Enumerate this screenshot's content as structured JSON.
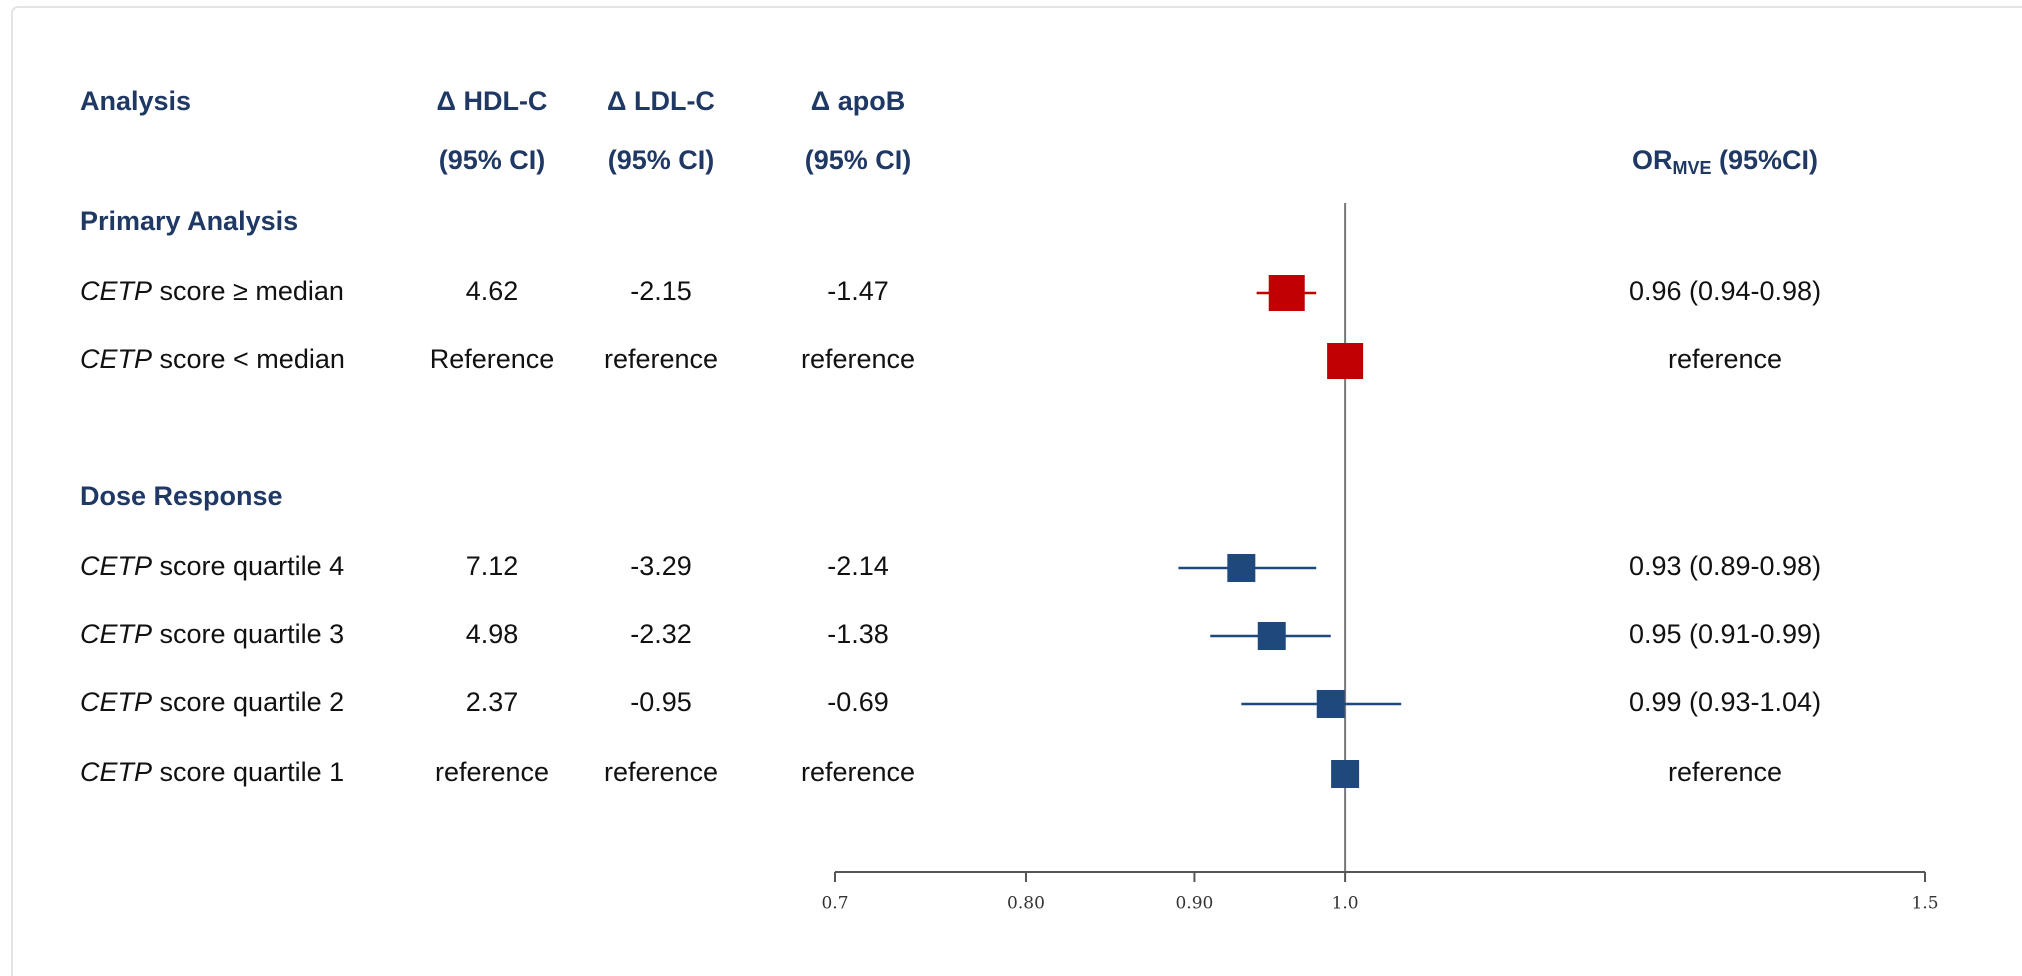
{
  "chart_data": {
    "type": "forest",
    "columns": [
      {
        "title": "Analysis"
      },
      {
        "title": "Δ HDL-C",
        "subtitle": "(95% CI)"
      },
      {
        "title": "Δ LDL-C",
        "subtitle": "(95% CI)"
      },
      {
        "title": "Δ apoB",
        "subtitle": "(95% CI)"
      }
    ],
    "or_header": {
      "main": "OR",
      "sub": "MVE",
      "rest": " (95%CI)"
    },
    "groups": [
      {
        "title": "Primary Analysis",
        "color": "#c00000",
        "rows": [
          {
            "label": "CETP score ≥ median",
            "cells": [
              "4.62",
              "-2.15",
              "-1.47"
            ],
            "or_text": "0.96 (0.94-0.98)",
            "estimate": 0.96,
            "lower": 0.94,
            "upper": 0.98
          },
          {
            "label": "CETP score <  median",
            "cells": [
              "Reference",
              "reference",
              "reference"
            ],
            "or_text": "reference",
            "estimate": 1,
            "lower": null,
            "upper": null
          }
        ]
      },
      {
        "title": "Dose Response",
        "color": "#1f497d",
        "rows": [
          {
            "label": "CETP score quartile 4",
            "cells": [
              "7.12",
              "-3.29",
              "-2.14"
            ],
            "or_text": "0.93 (0.89-0.98)",
            "estimate": 0.93,
            "lower": 0.89,
            "upper": 0.98
          },
          {
            "label": "CETP score quartile 3",
            "cells": [
              "4.98",
              "-2.32",
              "-1.38"
            ],
            "or_text": "0.95 (0.91-0.99)",
            "estimate": 0.95,
            "lower": 0.91,
            "upper": 0.99
          },
          {
            "label": "CETP score quartile 2",
            "cells": [
              "2.37",
              "-0.95",
              "-0.69"
            ],
            "or_text": "0.99 (0.93-1.04)",
            "estimate": 0.99,
            "lower": 0.93,
            "upper": 1.04
          },
          {
            "label": "CETP score quartile 1",
            "cells": [
              "reference",
              "reference",
              "reference"
            ],
            "or_text": "reference",
            "estimate": 1,
            "lower": null,
            "upper": null
          }
        ]
      }
    ],
    "xlim": [
      0.7,
      1.5
    ],
    "xticks": [
      0.7,
      {
        "value": 0.8,
        "label": "0.80"
      },
      {
        "value": 0.9,
        "label": "0.90"
      },
      {
        "value": 1.0,
        "label": "1.0"
      },
      1.5
    ],
    "log_scale": true,
    "reference_line": 1
  }
}
